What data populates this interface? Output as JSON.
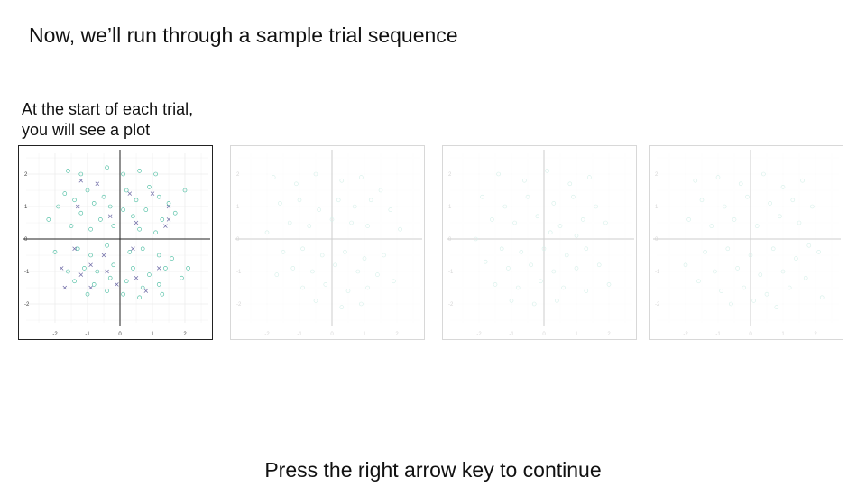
{
  "slide": {
    "heading": "Now, we’ll run through a sample trial sequence",
    "caption_line1": "At the start of each trial,",
    "caption_line2": "you will see a plot",
    "footer": "Press the right arrow key to continue"
  },
  "colors": {
    "circle_stroke": "#3db89a",
    "cross_stroke": "#6e6aa6",
    "axis": "#222222",
    "grid": "#ececec"
  },
  "chart_data": [
    {
      "type": "scatter",
      "state": "active",
      "x_ticks": [
        "-2",
        "-1",
        "0",
        "1",
        "2"
      ],
      "y_ticks": [
        "2",
        "1",
        "0",
        "-1",
        "-2"
      ],
      "xlim": [
        -3,
        3
      ],
      "ylim": [
        -3,
        3
      ],
      "series": [
        {
          "marker": "circle",
          "points": [
            [
              -1.6,
              2.1
            ],
            [
              -1.2,
              2.0
            ],
            [
              -0.4,
              2.2
            ],
            [
              0.1,
              2.0
            ],
            [
              0.6,
              2.1
            ],
            [
              1.1,
              2.0
            ],
            [
              -1.7,
              1.4
            ],
            [
              -1.4,
              1.2
            ],
            [
              -1.0,
              1.5
            ],
            [
              -0.8,
              1.1
            ],
            [
              -0.5,
              1.3
            ],
            [
              -0.3,
              1.0
            ],
            [
              0.2,
              1.5
            ],
            [
              0.5,
              1.2
            ],
            [
              0.9,
              1.6
            ],
            [
              1.2,
              1.3
            ],
            [
              1.5,
              1.1
            ],
            [
              2.0,
              1.5
            ],
            [
              -1.9,
              1.0
            ],
            [
              -1.2,
              0.8
            ],
            [
              -0.6,
              0.6
            ],
            [
              0.1,
              0.9
            ],
            [
              0.4,
              0.7
            ],
            [
              0.8,
              0.9
            ],
            [
              1.3,
              0.6
            ],
            [
              1.7,
              0.8
            ],
            [
              -1.5,
              0.4
            ],
            [
              -0.9,
              0.3
            ],
            [
              -0.2,
              0.4
            ],
            [
              0.6,
              0.3
            ],
            [
              1.1,
              0.2
            ],
            [
              -2.2,
              0.6
            ],
            [
              -1.3,
              -0.3
            ],
            [
              -0.9,
              -0.5
            ],
            [
              -0.4,
              -0.2
            ],
            [
              0.3,
              -0.4
            ],
            [
              0.7,
              -0.3
            ],
            [
              1.2,
              -0.5
            ],
            [
              1.6,
              -0.6
            ],
            [
              -1.1,
              -0.9
            ],
            [
              -0.7,
              -1.0
            ],
            [
              -0.2,
              -0.8
            ],
            [
              0.4,
              -0.9
            ],
            [
              0.9,
              -1.1
            ],
            [
              1.4,
              -0.9
            ],
            [
              2.1,
              -0.9
            ],
            [
              -1.4,
              -1.3
            ],
            [
              -0.8,
              -1.4
            ],
            [
              -0.3,
              -1.2
            ],
            [
              0.2,
              -1.3
            ],
            [
              0.7,
              -1.5
            ],
            [
              1.2,
              -1.4
            ],
            [
              1.9,
              -1.2
            ],
            [
              -1.0,
              -1.7
            ],
            [
              -0.4,
              -1.6
            ],
            [
              0.1,
              -1.7
            ],
            [
              0.6,
              -1.8
            ],
            [
              1.3,
              -1.7
            ],
            [
              -1.6,
              -1.0
            ],
            [
              -2.0,
              -0.4
            ]
          ]
        },
        {
          "marker": "cross",
          "points": [
            [
              -1.2,
              1.8
            ],
            [
              -0.7,
              1.7
            ],
            [
              0.3,
              1.4
            ],
            [
              1.0,
              1.4
            ],
            [
              1.5,
              1.0
            ],
            [
              -1.3,
              1.0
            ],
            [
              -0.3,
              0.7
            ],
            [
              0.5,
              0.5
            ],
            [
              1.4,
              0.4
            ],
            [
              1.5,
              0.6
            ],
            [
              -1.4,
              -0.3
            ],
            [
              -0.9,
              -0.8
            ],
            [
              -0.5,
              -0.5
            ],
            [
              -1.2,
              -1.1
            ],
            [
              -0.4,
              -1.0
            ],
            [
              0.5,
              -1.2
            ],
            [
              1.2,
              -0.9
            ],
            [
              -1.7,
              -1.5
            ],
            [
              -0.9,
              -1.5
            ],
            [
              -0.1,
              -1.4
            ],
            [
              0.8,
              -1.6
            ],
            [
              0.4,
              -0.3
            ],
            [
              -1.8,
              -0.9
            ]
          ]
        }
      ]
    },
    {
      "type": "scatter",
      "state": "faded",
      "x_ticks": [
        "-2",
        "-1",
        "0",
        "1",
        "2"
      ],
      "y_ticks": [
        "2",
        "1",
        "0",
        "-1",
        "-2"
      ],
      "xlim": [
        -3,
        3
      ],
      "ylim": [
        -3,
        3
      ],
      "series": [
        {
          "marker": "circle",
          "points": [
            [
              -1.8,
              1.9
            ],
            [
              -1.1,
              1.7
            ],
            [
              -0.5,
              2.0
            ],
            [
              0.3,
              1.8
            ],
            [
              0.9,
              1.9
            ],
            [
              1.5,
              1.5
            ],
            [
              -1.6,
              1.1
            ],
            [
              -1.0,
              1.2
            ],
            [
              -0.4,
              0.9
            ],
            [
              0.2,
              1.2
            ],
            [
              0.7,
              1.0
            ],
            [
              1.2,
              1.2
            ],
            [
              1.8,
              0.9
            ],
            [
              -1.3,
              0.5
            ],
            [
              -0.7,
              0.4
            ],
            [
              0.0,
              0.6
            ],
            [
              0.6,
              0.5
            ],
            [
              1.1,
              0.4
            ],
            [
              -1.5,
              -0.4
            ],
            [
              -0.9,
              -0.3
            ],
            [
              -0.3,
              -0.5
            ],
            [
              0.4,
              -0.4
            ],
            [
              1.0,
              -0.6
            ],
            [
              1.6,
              -0.5
            ],
            [
              -1.2,
              -0.9
            ],
            [
              -0.6,
              -1.0
            ],
            [
              0.1,
              -0.8
            ],
            [
              0.8,
              -1.0
            ],
            [
              1.4,
              -1.1
            ],
            [
              -0.9,
              -1.5
            ],
            [
              -0.2,
              -1.4
            ],
            [
              0.5,
              -1.6
            ],
            [
              1.1,
              -1.5
            ],
            [
              1.9,
              -1.3
            ],
            [
              -1.7,
              -1.1
            ],
            [
              -0.5,
              -1.9
            ],
            [
              0.3,
              -2.1
            ],
            [
              -2.0,
              0.2
            ],
            [
              2.1,
              0.3
            ],
            [
              0.9,
              -2.0
            ]
          ]
        }
      ]
    },
    {
      "type": "scatter",
      "state": "faded",
      "x_ticks": [
        "-2",
        "-1",
        "0",
        "1",
        "2"
      ],
      "y_ticks": [
        "2",
        "1",
        "0",
        "-1",
        "-2"
      ],
      "xlim": [
        -3,
        3
      ],
      "ylim": [
        -3,
        3
      ],
      "series": [
        {
          "marker": "circle",
          "points": [
            [
              -1.4,
              2.0
            ],
            [
              -0.6,
              1.8
            ],
            [
              0.1,
              2.1
            ],
            [
              0.8,
              1.7
            ],
            [
              1.4,
              1.9
            ],
            [
              -1.9,
              1.3
            ],
            [
              -1.2,
              1.0
            ],
            [
              -0.5,
              1.3
            ],
            [
              0.3,
              1.1
            ],
            [
              0.9,
              1.3
            ],
            [
              1.6,
              1.0
            ],
            [
              -1.6,
              0.6
            ],
            [
              -0.9,
              0.5
            ],
            [
              -0.2,
              0.7
            ],
            [
              0.5,
              0.4
            ],
            [
              1.2,
              0.6
            ],
            [
              1.9,
              0.5
            ],
            [
              -1.3,
              -0.3
            ],
            [
              -0.7,
              -0.4
            ],
            [
              0.0,
              -0.3
            ],
            [
              0.7,
              -0.5
            ],
            [
              1.3,
              -0.3
            ],
            [
              -1.8,
              -0.7
            ],
            [
              -1.1,
              -0.9
            ],
            [
              -0.4,
              -0.8
            ],
            [
              0.3,
              -1.0
            ],
            [
              1.0,
              -0.9
            ],
            [
              1.7,
              -0.8
            ],
            [
              -1.5,
              -1.4
            ],
            [
              -0.8,
              -1.5
            ],
            [
              -0.1,
              -1.3
            ],
            [
              0.6,
              -1.5
            ],
            [
              1.3,
              -1.6
            ],
            [
              -1.0,
              -1.9
            ],
            [
              -0.3,
              -2.0
            ],
            [
              0.4,
              -1.9
            ],
            [
              2.0,
              -1.4
            ],
            [
              -2.1,
              0.0
            ],
            [
              0.2,
              0.2
            ],
            [
              1.0,
              0.1
            ]
          ]
        }
      ]
    },
    {
      "type": "scatter",
      "state": "faded",
      "x_ticks": [
        "-2",
        "-1",
        "0",
        "1",
        "2"
      ],
      "y_ticks": [
        "2",
        "1",
        "0",
        "-1",
        "-2"
      ],
      "xlim": [
        -3,
        3
      ],
      "ylim": [
        -3,
        3
      ],
      "series": [
        {
          "marker": "circle",
          "points": [
            [
              -1.7,
              1.8
            ],
            [
              -1.0,
              1.9
            ],
            [
              -0.3,
              1.7
            ],
            [
              0.4,
              2.0
            ],
            [
              1.0,
              1.6
            ],
            [
              1.6,
              1.8
            ],
            [
              -1.5,
              1.2
            ],
            [
              -0.8,
              1.0
            ],
            [
              -0.1,
              1.3
            ],
            [
              0.6,
              1.1
            ],
            [
              1.3,
              1.2
            ],
            [
              1.9,
              1.0
            ],
            [
              -1.9,
              0.6
            ],
            [
              -1.2,
              0.4
            ],
            [
              -0.5,
              0.6
            ],
            [
              0.2,
              0.4
            ],
            [
              0.9,
              0.7
            ],
            [
              1.5,
              0.5
            ],
            [
              -1.4,
              -0.4
            ],
            [
              -0.7,
              -0.3
            ],
            [
              0.0,
              -0.5
            ],
            [
              0.7,
              -0.3
            ],
            [
              1.4,
              -0.6
            ],
            [
              2.1,
              -0.4
            ],
            [
              -1.1,
              -1.0
            ],
            [
              -0.4,
              -0.9
            ],
            [
              0.3,
              -1.1
            ],
            [
              1.0,
              -1.0
            ],
            [
              1.7,
              -1.2
            ],
            [
              -1.6,
              -1.3
            ],
            [
              -0.9,
              -1.6
            ],
            [
              -0.2,
              -1.5
            ],
            [
              0.5,
              -1.7
            ],
            [
              1.2,
              -1.5
            ],
            [
              -0.6,
              -2.0
            ],
            [
              0.1,
              -1.9
            ],
            [
              2.2,
              -1.8
            ],
            [
              -2.0,
              -0.8
            ],
            [
              1.8,
              -0.2
            ],
            [
              0.8,
              -2.1
            ]
          ]
        }
      ]
    }
  ]
}
